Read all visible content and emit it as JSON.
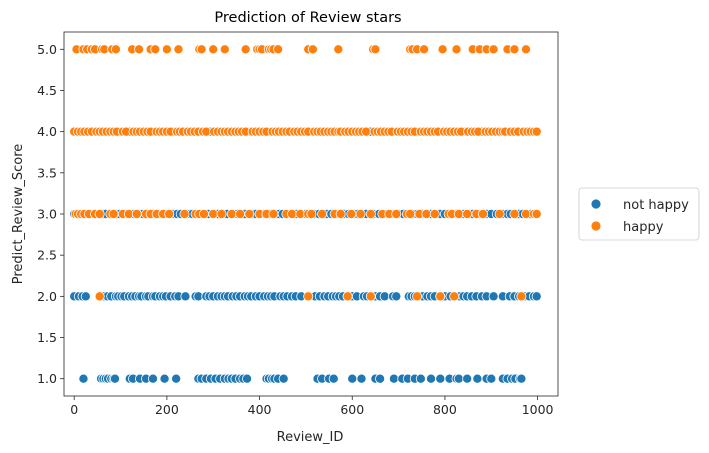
{
  "chart_data": {
    "type": "scatter",
    "title": "Prediction of Review stars",
    "xlabel": "Review_ID",
    "ylabel": "Predict_Review_Score",
    "xlim": [
      -22,
      1044
    ],
    "ylim": [
      0.79,
      5.21
    ],
    "xticks": [
      0,
      200,
      400,
      600,
      800,
      1000
    ],
    "xtick_labels": [
      "0",
      "200",
      "400",
      "600",
      "800",
      "1000"
    ],
    "yticks": [
      1.0,
      1.5,
      2.0,
      2.5,
      3.0,
      3.5,
      4.0,
      4.5,
      5.0
    ],
    "ytick_labels": [
      "1.0",
      "1.5",
      "2.0",
      "2.5",
      "3.0",
      "3.5",
      "4.0",
      "4.5",
      "5.0"
    ],
    "grid": false,
    "legend_position": "outside-right",
    "legend": [
      {
        "label": "not happy",
        "color": "#1f77b4"
      },
      {
        "label": "happy",
        "color": "#ff7f0e"
      }
    ],
    "series": [
      {
        "name": "not happy",
        "color": "#1f77b4",
        "points": [
          {
            "y": 1.0,
            "x": [
              20,
              58,
              63,
              68,
              73,
              80,
              85,
              88,
              120,
              127,
              142,
              155,
              170,
              195,
              220,
              268,
              275,
              285,
              295,
              305,
              315,
              325,
              333,
              340,
              348,
              358,
              365,
              373,
              415,
              420,
              427,
              432,
              440,
              452,
              525,
              535,
              550,
              560,
              600,
              620,
              650,
              660,
              690,
              708,
              720,
              735,
              748,
              770,
              790,
              810,
              825,
              830,
              848,
              870,
              890,
              900,
              925,
              935,
              945,
              952,
              962,
              965
            ]
          },
          {
            "y": 2.0,
            "x": [
              0,
              10,
              18,
              25,
              65,
              72,
              80,
              90,
              95,
              102,
              108,
              118,
              125,
              132,
              140,
              145,
              155,
              160,
              170,
              175,
              185,
              192,
              198,
              208,
              218,
              225,
              240,
              262,
              268,
              285,
              292,
              300,
              310,
              318,
              325,
              332,
              342,
              350,
              358,
              368,
              375,
              382,
              392,
              400,
              410,
              418,
              425,
              432,
              445,
              452,
              460,
              470,
              478,
              490,
              520,
              530,
              540,
              548,
              558,
              565,
              572,
              580,
              590,
              600,
              610,
              625,
              632,
              642,
              650,
              660,
              670,
              688,
              695,
              722,
              728,
              735,
              745,
              752,
              762,
              770,
              778,
              790,
              800,
              812,
              822,
              832,
              840,
              848,
              858,
              868,
              880,
              890,
              905,
              925,
              940,
              950,
              960,
              972,
              982,
              992,
              998
            ]
          },
          {
            "y": 3.0,
            "x": [
              0,
              5,
              12,
              28,
              40,
              52,
              62,
              68,
              90,
              98,
              112,
              128,
              138,
              148,
              162,
              172,
              182,
              200,
              210,
              215,
              222,
              230,
              242,
              250,
              255,
              275,
              290,
              310,
              320,
              330,
              348,
              352,
              368,
              385,
              392,
              410,
              422,
              435,
              442,
              450,
              465,
              480,
              490,
              500,
              518,
              528,
              545,
              555,
              570,
              582,
              592,
              605,
              612,
              622,
              630,
              645,
              658,
              668,
              675,
              690,
              700,
              710,
              730,
              740,
              752,
              770,
              790,
              800,
              825,
              840,
              855,
              860,
              875,
              890,
              900,
              912,
              925,
              935,
              942,
              960,
              968,
              978,
              985
            ]
          },
          {
            "y": 4.0,
            "x": [
              5,
              45,
              98,
              120,
              170,
              215,
              295,
              380,
              420,
              470,
              510,
              580,
              640,
              690,
              740,
              790,
              845,
              880,
              935,
              965
            ]
          }
        ]
      },
      {
        "name": "happy",
        "color": "#ff7f0e",
        "points": [
          {
            "y": 2.0,
            "x": [
              55,
              505,
              590,
              640,
              740,
              790,
              820,
              965
            ]
          },
          {
            "y": 3.0,
            "x": [
              3,
              8,
              15,
              22,
              32,
              45,
              55,
              78,
              85,
              105,
              118,
              135,
              155,
              165,
              178,
              192,
              205,
              238,
              262,
              270,
              280,
              300,
              318,
              340,
              358,
              378,
              400,
              415,
              430,
              458,
              470,
              488,
              505,
              512,
              535,
              562,
              575,
              598,
              618,
              640,
              665,
              680,
              695,
              718,
              725,
              745,
              760,
              778,
              808,
              815,
              830,
              848,
              868,
              882,
              918,
              950,
              975,
              992,
              998
            ]
          },
          {
            "y": 4.0,
            "x": [
              0,
              8,
              15,
              22,
              30,
              38,
              48,
              55,
              62,
              70,
              78,
              85,
              92,
              105,
              112,
              128,
              135,
              142,
              150,
              158,
              165,
              178,
              185,
              192,
              200,
              208,
              222,
              228,
              235,
              245,
              252,
              260,
              268,
              278,
              285,
              302,
              310,
              318,
              325,
              332,
              340,
              348,
              355,
              362,
              370,
              385,
              392,
              400,
              408,
              415,
              428,
              435,
              442,
              450,
              458,
              465,
              475,
              482,
              490,
              498,
              505,
              518,
              525,
              532,
              540,
              548,
              555,
              562,
              570,
              575,
              585,
              592,
              600,
              608,
              615,
              622,
              630,
              648,
              655,
              662,
              670,
              678,
              685,
              698,
              705,
              712,
              720,
              728,
              735,
              748,
              755,
              762,
              770,
              778,
              785,
              798,
              805,
              812,
              820,
              828,
              835,
              850,
              858,
              865,
              872,
              888,
              895,
              902,
              910,
              918,
              925,
              930,
              942,
              950,
              958,
              970,
              978,
              985,
              992,
              998
            ]
          },
          {
            "y": 5.0,
            "x": [
              5,
              20,
              28,
              38,
              45,
              60,
              65,
              82,
              90,
              125,
              140,
              165,
              175,
              200,
              225,
              270,
              275,
              300,
              325,
              370,
              395,
              400,
              405,
              420,
              425,
              430,
              440,
              505,
              515,
              570,
              645,
              650,
              725,
              730,
              740,
              755,
              795,
              825,
              860,
              875,
              890,
              905,
              935,
              950,
              975
            ]
          }
        ]
      }
    ]
  }
}
